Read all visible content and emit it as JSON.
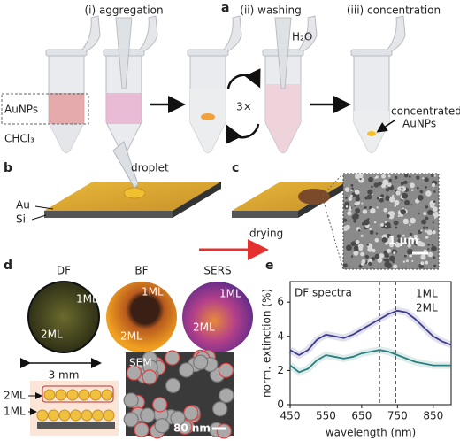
{
  "panel_a": {
    "label": "a",
    "steps": [
      "(i) aggregation",
      "(ii) washing",
      "(iii) concentration"
    ],
    "water": "H₂O",
    "repeat": "3×",
    "layers": [
      "AuNPs",
      "CHCl₃"
    ],
    "result": [
      "concentrated",
      "AuNPs"
    ]
  },
  "panel_b": {
    "label": "b",
    "droplet": "droplet",
    "layers": [
      "Au",
      "Si"
    ]
  },
  "panel_c": {
    "label": "c",
    "arrow": "drying",
    "scale_bar": "1 µm"
  },
  "panel_d": {
    "label": "d",
    "images": [
      {
        "title": "DF",
        "regions": [
          "1ML",
          "2ML"
        ]
      },
      {
        "title": "BF",
        "regions": [
          "1ML",
          "2ML"
        ]
      },
      {
        "title": "SERS",
        "regions": [
          "1ML",
          "2ML"
        ]
      }
    ],
    "diameter": "3 mm",
    "layers": [
      "2ML",
      "1ML"
    ],
    "sem": "SEM",
    "scale_bar": "80 nm"
  },
  "chart_data": {
    "type": "line",
    "panel": "e",
    "title": "DF spectra",
    "xlabel": "wavelength (nm)",
    "ylabel": "norm. extinction (%)",
    "x": [
      450,
      475,
      500,
      525,
      550,
      575,
      600,
      625,
      650,
      675,
      700,
      725,
      750,
      775,
      800,
      825,
      850,
      875,
      900
    ],
    "series": [
      {
        "name": "1ML",
        "color": "#2a8080",
        "values": [
          2.3,
          1.9,
          2.1,
          2.6,
          2.9,
          2.8,
          2.7,
          2.8,
          3.0,
          3.1,
          3.2,
          3.1,
          2.9,
          2.7,
          2.5,
          2.4,
          2.3,
          2.3,
          2.3
        ]
      },
      {
        "name": "2ML",
        "color": "#3d3a8c",
        "values": [
          3.2,
          2.9,
          3.2,
          3.8,
          4.1,
          4.0,
          3.9,
          4.1,
          4.4,
          4.7,
          5.0,
          5.3,
          5.5,
          5.4,
          5.0,
          4.5,
          4.0,
          3.7,
          3.5
        ]
      }
    ],
    "xlim": [
      450,
      900
    ],
    "ylim": [
      0,
      7.2
    ],
    "xticks": [
      450,
      550,
      650,
      750,
      850
    ],
    "yticks": [
      0,
      2,
      4,
      6
    ],
    "reference_lines": [
      700,
      745
    ]
  }
}
